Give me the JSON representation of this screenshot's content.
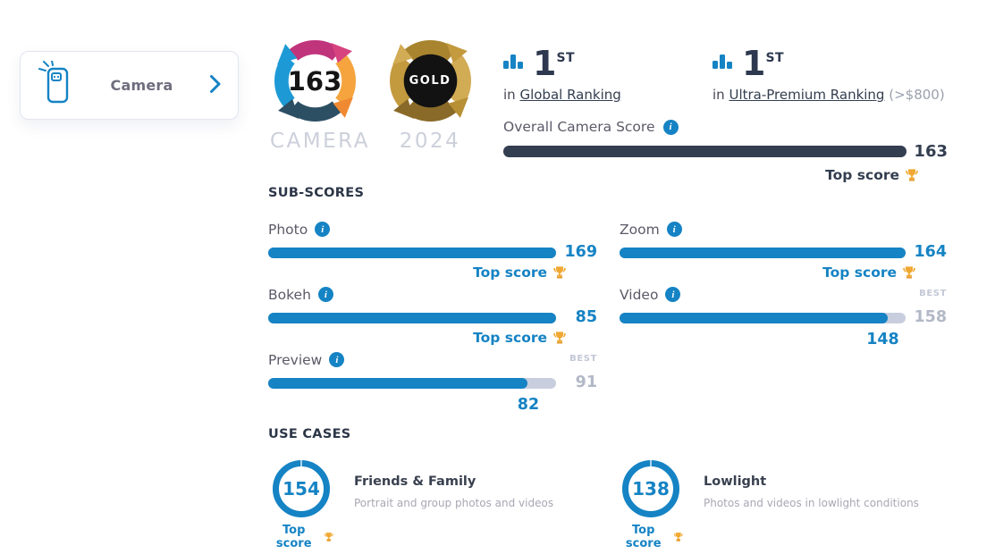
{
  "colors": {
    "accent_blue": "#1583c4",
    "navy": "#333e50",
    "track_gray": "#c9cede",
    "muted_gray": "#b2b8c6",
    "gold": "#f0a832",
    "label_gray": "#5d5968"
  },
  "camera_card": {
    "label": "Camera"
  },
  "logo": {
    "score": "163",
    "caption": "CAMERA"
  },
  "award": {
    "label": "GOLD",
    "year": "2024"
  },
  "rankings": [
    {
      "rank": "1",
      "suffix": "ST",
      "prefix": "in",
      "link_label": "Global Ranking",
      "note": ""
    },
    {
      "rank": "1",
      "suffix": "ST",
      "prefix": "in",
      "link_label": "Ultra-Premium Ranking",
      "note": "(>$800)"
    }
  ],
  "overall": {
    "label": "Overall Camera Score",
    "value": 163,
    "top_score_label": "Top score"
  },
  "subscores": {
    "heading": "SUB-SCORES",
    "best_label": "BEST",
    "top_score_label": "Top score",
    "items": [
      {
        "name": "Photo",
        "value": 169,
        "top_score": true
      },
      {
        "name": "Bokeh",
        "value": 85,
        "top_score": true
      },
      {
        "name": "Preview",
        "value": 82,
        "best": 91,
        "top_score": false
      },
      {
        "name": "Zoom",
        "value": 164,
        "top_score": true
      },
      {
        "name": "Video",
        "value": 148,
        "best": 158,
        "top_score": false
      }
    ]
  },
  "use_cases": {
    "heading": "USE CASES",
    "top_score_label": "Top score",
    "items": [
      {
        "name": "Friends & Family",
        "value": 154,
        "description": "Portrait and group photos and videos"
      },
      {
        "name": "Lowlight",
        "value": 138,
        "description": "Photos and videos in lowlight conditions"
      }
    ]
  }
}
